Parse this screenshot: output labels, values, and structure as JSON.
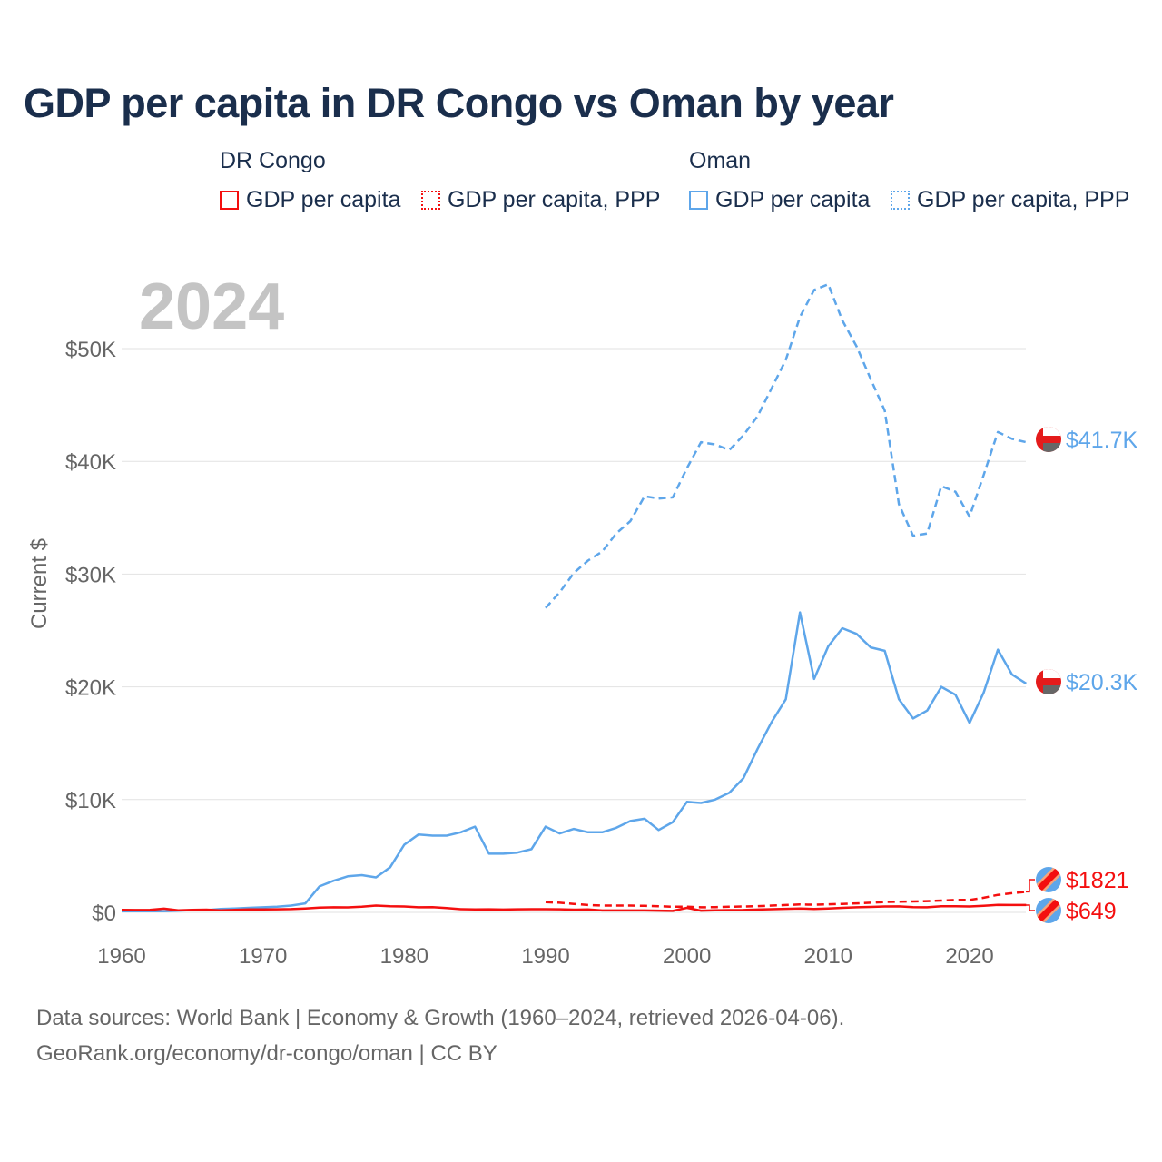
{
  "title": "GDP per capita in DR Congo vs Oman by year",
  "legend": {
    "groups": [
      {
        "name": "DR Congo",
        "items": [
          "GDP per capita",
          "GDP per capita, PPP"
        ],
        "color": "#f40f0f"
      },
      {
        "name": "Oman",
        "items": [
          "GDP per capita",
          "GDP per capita, PPP"
        ],
        "color": "#5ea6ea"
      }
    ]
  },
  "year_watermark": "2024",
  "footer": {
    "line1": "Data sources: World Bank | Economy & Growth (1960–2024, retrieved 2026-04-06).",
    "line2": "GeoRank.org/economy/dr-congo/oman | CC BY"
  },
  "chart_data": {
    "type": "line",
    "title": "GDP per capita in DR Congo vs Oman by year",
    "xlabel": "",
    "ylabel": "Current $",
    "xlim": [
      1960,
      2024
    ],
    "ylim": [
      0,
      55000
    ],
    "x_ticks": [
      1960,
      1970,
      1980,
      1990,
      2000,
      2010,
      2020
    ],
    "y_ticks": [
      {
        "v": 0,
        "label": "$0"
      },
      {
        "v": 10000,
        "label": "$10K"
      },
      {
        "v": 20000,
        "label": "$20K"
      },
      {
        "v": 30000,
        "label": "$30K"
      },
      {
        "v": 40000,
        "label": "$40K"
      },
      {
        "v": 50000,
        "label": "$50K"
      }
    ],
    "grid": true,
    "series": [
      {
        "name": "Oman GDP per capita, PPP",
        "color": "#5ea6ea",
        "dash": true,
        "start": 1990,
        "end_label": "$41.7K",
        "values_k": [
          27.0,
          28.4,
          30.1,
          31.2,
          32.0,
          33.6,
          34.7,
          36.9,
          36.7,
          36.8,
          39.4,
          41.7,
          41.5,
          41.0,
          42.3,
          44.0,
          46.5,
          49.0,
          52.8,
          55.2,
          55.7,
          52.5,
          50.2,
          47.3,
          44.5,
          36.2,
          33.4,
          33.6,
          37.8,
          37.3,
          35.1,
          38.8,
          42.6,
          42.0,
          41.7
        ]
      },
      {
        "name": "Oman GDP per capita",
        "color": "#5ea6ea",
        "dash": false,
        "start": 1960,
        "end_label": "$20.3K",
        "values_k": [
          0.1,
          0.1,
          0.1,
          0.1,
          0.15,
          0.2,
          0.2,
          0.3,
          0.35,
          0.4,
          0.45,
          0.5,
          0.6,
          0.8,
          2.3,
          2.8,
          3.2,
          3.3,
          3.1,
          4.0,
          6.0,
          6.9,
          6.8,
          6.8,
          7.1,
          7.6,
          5.2,
          5.2,
          5.3,
          5.6,
          7.6,
          7.0,
          7.4,
          7.1,
          7.1,
          7.5,
          8.1,
          8.3,
          7.3,
          8.0,
          9.8,
          9.7,
          10.0,
          10.6,
          11.9,
          14.5,
          16.9,
          18.9,
          26.6,
          20.7,
          23.6,
          25.2,
          24.7,
          23.5,
          23.2,
          18.9,
          17.2,
          17.9,
          20.0,
          19.3,
          16.8,
          19.5,
          23.3,
          21.1,
          20.3
        ]
      },
      {
        "name": "DR Congo GDP per capita, PPP",
        "color": "#f40f0f",
        "dash": true,
        "start": 1990,
        "end_label": "$1821",
        "values_k": [
          0.9,
          0.85,
          0.75,
          0.65,
          0.6,
          0.6,
          0.6,
          0.58,
          0.55,
          0.5,
          0.5,
          0.45,
          0.47,
          0.5,
          0.52,
          0.55,
          0.6,
          0.65,
          0.7,
          0.68,
          0.72,
          0.75,
          0.8,
          0.85,
          0.92,
          0.95,
          0.97,
          1.0,
          1.05,
          1.1,
          1.1,
          1.3,
          1.55,
          1.7,
          1.821
        ]
      },
      {
        "name": "DR Congo GDP per capita",
        "color": "#f40f0f",
        "dash": false,
        "start": 1960,
        "end_label": "$649",
        "values_k": [
          0.22,
          0.21,
          0.22,
          0.33,
          0.18,
          0.22,
          0.24,
          0.18,
          0.22,
          0.26,
          0.26,
          0.27,
          0.29,
          0.35,
          0.43,
          0.45,
          0.44,
          0.5,
          0.6,
          0.55,
          0.52,
          0.45,
          0.46,
          0.38,
          0.28,
          0.26,
          0.27,
          0.25,
          0.27,
          0.28,
          0.28,
          0.27,
          0.24,
          0.26,
          0.17,
          0.17,
          0.17,
          0.17,
          0.15,
          0.13,
          0.4,
          0.15,
          0.18,
          0.2,
          0.21,
          0.25,
          0.28,
          0.31,
          0.35,
          0.3,
          0.35,
          0.4,
          0.45,
          0.48,
          0.52,
          0.53,
          0.47,
          0.45,
          0.55,
          0.55,
          0.52,
          0.58,
          0.66,
          0.65,
          0.649
        ]
      }
    ]
  }
}
